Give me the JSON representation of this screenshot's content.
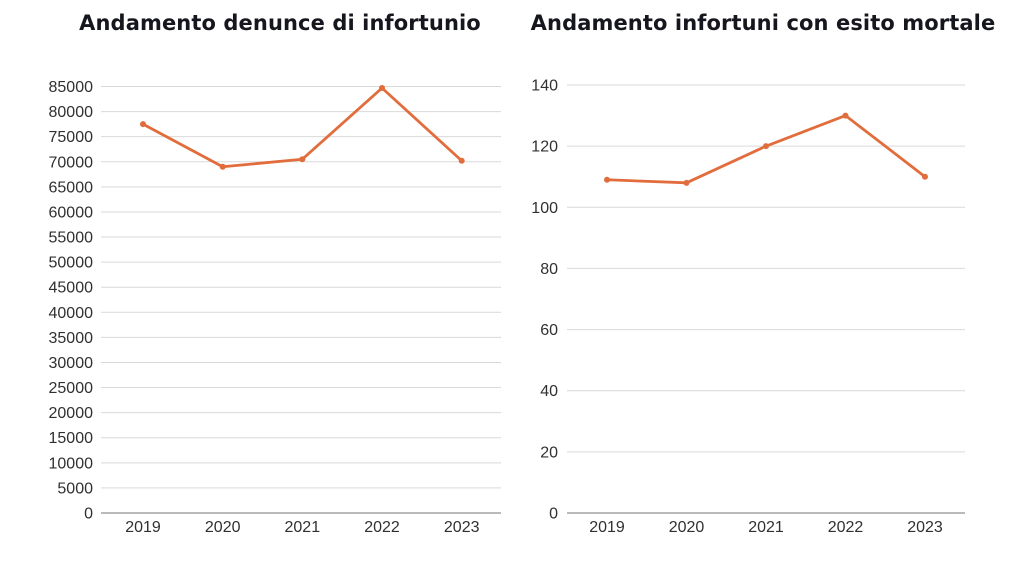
{
  "chart_data": [
    {
      "type": "line",
      "title": "Andamento denunce di infortunio",
      "categories": [
        "2019",
        "2020",
        "2021",
        "2022",
        "2023"
      ],
      "values": [
        77500,
        69000,
        70500,
        84700,
        70200
      ],
      "xlabel": "",
      "ylabel": "",
      "ylim": [
        0,
        85000
      ],
      "ytick_step": 5000,
      "grid": "horizontal",
      "legend": "none",
      "line_color": "#e26d3c",
      "marker": "circle"
    },
    {
      "type": "line",
      "title": "Andamento infortuni con esito mortale",
      "categories": [
        "2019",
        "2020",
        "2021",
        "2022",
        "2023"
      ],
      "values": [
        109,
        108,
        120,
        130,
        110
      ],
      "xlabel": "",
      "ylabel": "",
      "ylim": [
        0,
        140
      ],
      "ytick_step": 20,
      "grid": "horizontal",
      "legend": "none",
      "line_color": "#e26d3c",
      "marker": "circle"
    }
  ],
  "theme": {
    "background": "#ffffff",
    "grid_color": "#d9d9d9",
    "axis_color": "#a3a3a3",
    "tick_color": "#303030",
    "title_color": "#16161e"
  }
}
